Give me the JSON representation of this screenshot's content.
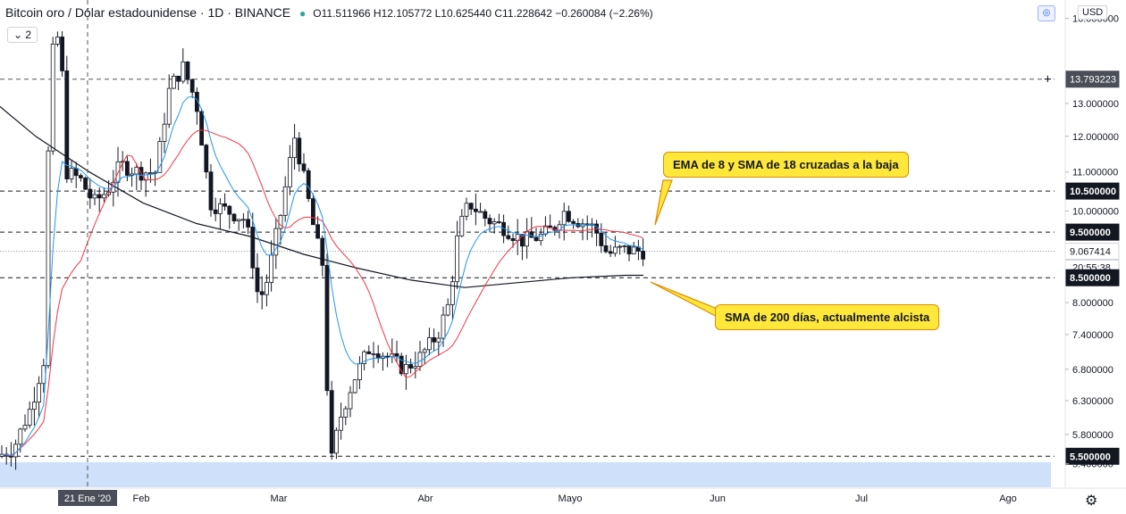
{
  "header": {
    "pair": "Bitcoin oro / Dólar estadounidense · 1D · BINANCE",
    "ohlc": "O11.511966  H12.105772  L10.625440  C11.228642  −0.260084 (−2.26%)"
  },
  "indicator_count": "2",
  "currency": "USD",
  "icons": {
    "camera": "camera-icon",
    "settings": "gear-icon",
    "crosshair": "plus-icon"
  },
  "colors": {
    "up": "#26a69a",
    "ema8": "#2196f3",
    "sma18": "#f23645",
    "sma200": "#131722",
    "support_zone": "#cfe0fb",
    "callout": "#ffe83a"
  },
  "chart_data": {
    "type": "candlestick",
    "title": "Bitcoin oro / Dólar estadounidense · 1D · BINANCE",
    "x_ticks": [
      "21 Ene '20",
      "Feb",
      "Mar",
      "Abr",
      "Mayo",
      "Jun",
      "Jul",
      "Ago"
    ],
    "y_ticks": [
      "16.000000",
      "13.000000",
      "12.000000",
      "11.000000",
      "10.000000",
      "8.000000",
      "7.400000",
      "6.800000",
      "6.300000",
      "5.800000",
      "5.400000"
    ],
    "ylim": [
      5.1,
      16.3
    ],
    "axis_scale": "log",
    "highlighted_levels": [
      {
        "value": "13.793223",
        "style": "crosshair"
      },
      {
        "value": "10.500000",
        "style": "dashed"
      },
      {
        "value": "9.500000",
        "style": "dashed"
      },
      {
        "value": "9.067414",
        "style": "last-price"
      },
      {
        "value": "8.500000",
        "style": "dashed"
      },
      {
        "value": "5.500000",
        "style": "dashed"
      }
    ],
    "countdown": "20:55:38",
    "series": [
      {
        "name": "EMA 8",
        "color": "#2196f3"
      },
      {
        "name": "SMA 18",
        "color": "#f23645"
      },
      {
        "name": "SMA 200",
        "color": "#131722"
      }
    ],
    "annotations": [
      {
        "text": "EMA de 8 y SMA de 18 cruzadas a la baja"
      },
      {
        "text": "SMA de 200 días, actualmente alcista"
      }
    ]
  }
}
